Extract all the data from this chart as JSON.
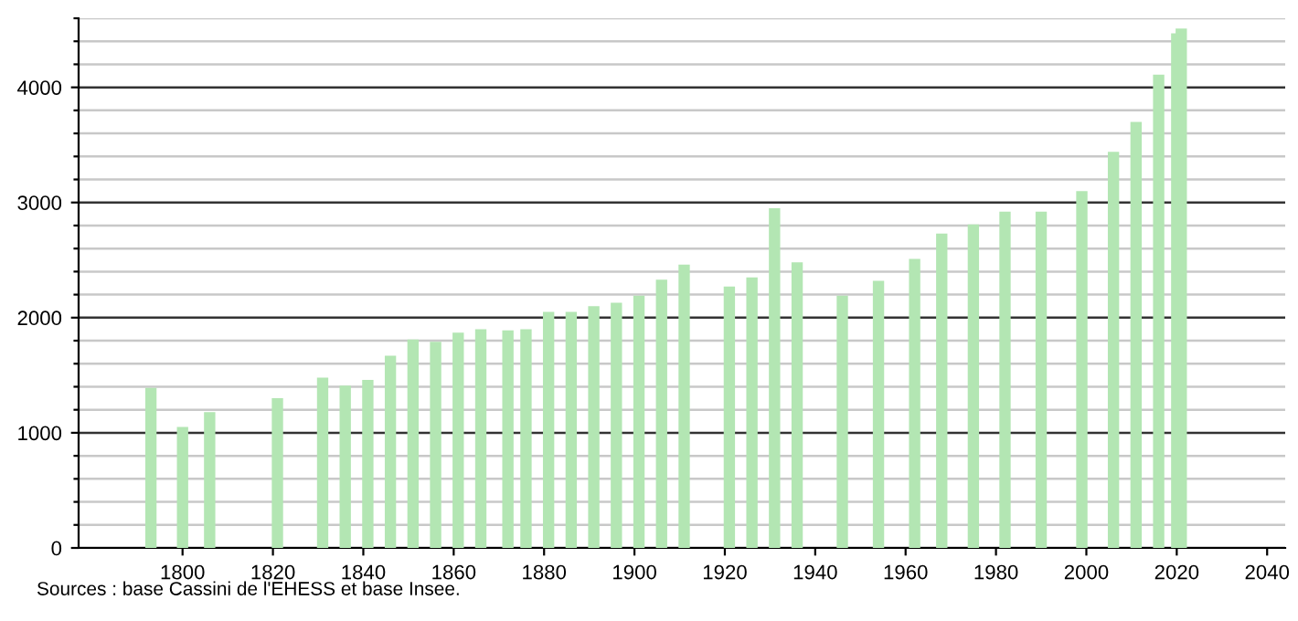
{
  "chart_data": {
    "type": "bar",
    "x": [
      1793,
      1800,
      1806,
      1821,
      1831,
      1836,
      1841,
      1846,
      1851,
      1856,
      1861,
      1866,
      1872,
      1876,
      1881,
      1886,
      1891,
      1896,
      1901,
      1906,
      1911,
      1921,
      1926,
      1931,
      1936,
      1946,
      1954,
      1962,
      1968,
      1975,
      1982,
      1990,
      1999,
      2006,
      2011,
      2016,
      2020,
      2021
    ],
    "values": [
      1390,
      1050,
      1180,
      1300,
      1480,
      1410,
      1460,
      1670,
      1810,
      1790,
      1870,
      1900,
      1890,
      1900,
      2050,
      2050,
      2100,
      2130,
      2190,
      2330,
      2460,
      2270,
      2350,
      2950,
      2480,
      2190,
      2320,
      2510,
      2730,
      2810,
      2920,
      2920,
      3100,
      3440,
      3700,
      4110,
      4470,
      4510
    ],
    "color": "#b3e6b3",
    "xlim": [
      1777,
      2044
    ],
    "xticks": [
      1800,
      1820,
      1840,
      1860,
      1880,
      1900,
      1920,
      1940,
      1960,
      1980,
      2000,
      2020,
      2040
    ],
    "ylim": [
      0,
      4600
    ],
    "yticks": [
      0,
      {
        "value": 200,
        "label": null
      },
      {
        "value": 400,
        "label": null
      },
      {
        "value": 600,
        "label": null
      },
      {
        "value": 800,
        "label": null
      },
      1000,
      {
        "value": 1200,
        "label": null
      },
      {
        "value": 1400,
        "label": null
      },
      {
        "value": 1600,
        "label": null
      },
      {
        "value": 1800,
        "label": null
      },
      2000,
      {
        "value": 2200,
        "label": null
      },
      {
        "value": 2400,
        "label": null
      },
      {
        "value": 2600,
        "label": null
      },
      {
        "value": 2800,
        "label": null
      },
      3000,
      {
        "value": 3200,
        "label": null
      },
      {
        "value": 3400,
        "label": null
      },
      {
        "value": 3600,
        "label": null
      },
      {
        "value": 3800,
        "label": null
      },
      4000,
      {
        "value": 4200,
        "label": null
      },
      {
        "value": 4400,
        "label": null
      },
      {
        "value": 4600,
        "label": null
      }
    ],
    "grid": "y",
    "annotations": [
      "Sources : base Cassini de l'EHESS et base Insee."
    ]
  }
}
